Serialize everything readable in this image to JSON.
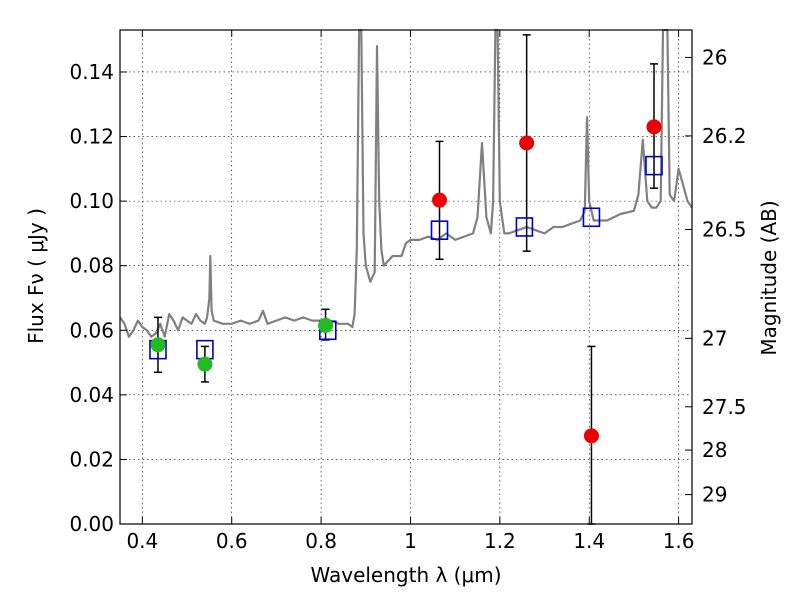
{
  "chart_data": {
    "type": "scatter",
    "xlabel": "Wavelength  λ (μm)",
    "ylabel": "Flux  Fν  ( μJy )",
    "ylabel_right": "Magnitude (AB)",
    "xlim": [
      0.35,
      1.63
    ],
    "ylim": [
      0.0,
      0.153
    ],
    "grid": true,
    "x_ticks": [
      0.4,
      0.6,
      0.8,
      1.0,
      1.2,
      1.4,
      1.6
    ],
    "x_tick_labels": [
      "0.4",
      "0.6",
      "0.8",
      "1",
      "1.2",
      "1.4",
      "1.6"
    ],
    "y_ticks": [
      0.0,
      0.02,
      0.04,
      0.06,
      0.08,
      0.1,
      0.12,
      0.14
    ],
    "y_tick_labels": [
      "0.00",
      "0.02",
      "0.04",
      "0.06",
      "0.08",
      "0.10",
      "0.12",
      "0.14"
    ],
    "right_ticks": [
      {
        "label": "26",
        "flux": 0.1445
      },
      {
        "label": "26.2",
        "flux": 0.1202
      },
      {
        "label": "26.5",
        "flux": 0.0912
      },
      {
        "label": "27",
        "flux": 0.0575
      },
      {
        "label": "27.5",
        "flux": 0.0363
      },
      {
        "label": "28",
        "flux": 0.0229
      },
      {
        "label": "29",
        "flux": 0.0091
      }
    ],
    "series": [
      {
        "role": "model spectrum",
        "color": "#808080",
        "points": [
          [
            0.35,
            0.064
          ],
          [
            0.36,
            0.062
          ],
          [
            0.37,
            0.058
          ],
          [
            0.38,
            0.06
          ],
          [
            0.39,
            0.063
          ],
          [
            0.4,
            0.061
          ],
          [
            0.41,
            0.06
          ],
          [
            0.42,
            0.058
          ],
          [
            0.43,
            0.059
          ],
          [
            0.44,
            0.062
          ],
          [
            0.45,
            0.058
          ],
          [
            0.46,
            0.065
          ],
          [
            0.47,
            0.063
          ],
          [
            0.48,
            0.06
          ],
          [
            0.49,
            0.064
          ],
          [
            0.5,
            0.063
          ],
          [
            0.51,
            0.062
          ],
          [
            0.52,
            0.065
          ],
          [
            0.53,
            0.063
          ],
          [
            0.54,
            0.062
          ],
          [
            0.545,
            0.064
          ],
          [
            0.55,
            0.07
          ],
          [
            0.552,
            0.083
          ],
          [
            0.555,
            0.066
          ],
          [
            0.56,
            0.063
          ],
          [
            0.58,
            0.062
          ],
          [
            0.6,
            0.062
          ],
          [
            0.62,
            0.063
          ],
          [
            0.64,
            0.062
          ],
          [
            0.66,
            0.063
          ],
          [
            0.67,
            0.066
          ],
          [
            0.68,
            0.062
          ],
          [
            0.7,
            0.063
          ],
          [
            0.72,
            0.064
          ],
          [
            0.74,
            0.063
          ],
          [
            0.76,
            0.064
          ],
          [
            0.78,
            0.063
          ],
          [
            0.8,
            0.063
          ],
          [
            0.82,
            0.063
          ],
          [
            0.84,
            0.062
          ],
          [
            0.86,
            0.062
          ],
          [
            0.87,
            0.061
          ],
          [
            0.875,
            0.065
          ],
          [
            0.88,
            0.085
          ],
          [
            0.885,
            0.153
          ],
          [
            0.89,
            0.153
          ],
          [
            0.895,
            0.09
          ],
          [
            0.9,
            0.08
          ],
          [
            0.91,
            0.075
          ],
          [
            0.92,
            0.078
          ],
          [
            0.925,
            0.148
          ],
          [
            0.93,
            0.1
          ],
          [
            0.935,
            0.085
          ],
          [
            0.94,
            0.08
          ],
          [
            0.96,
            0.083
          ],
          [
            0.98,
            0.083
          ],
          [
            0.99,
            0.087
          ],
          [
            1.0,
            0.088
          ],
          [
            1.02,
            0.088
          ],
          [
            1.04,
            0.089
          ],
          [
            1.06,
            0.088
          ],
          [
            1.08,
            0.09
          ],
          [
            1.1,
            0.088
          ],
          [
            1.12,
            0.089
          ],
          [
            1.14,
            0.09
          ],
          [
            1.15,
            0.095
          ],
          [
            1.16,
            0.118
          ],
          [
            1.17,
            0.095
          ],
          [
            1.18,
            0.09
          ],
          [
            1.185,
            0.1
          ],
          [
            1.19,
            0.153
          ],
          [
            1.195,
            0.153
          ],
          [
            1.2,
            0.1
          ],
          [
            1.21,
            0.09
          ],
          [
            1.22,
            0.09
          ],
          [
            1.24,
            0.091
          ],
          [
            1.26,
            0.092
          ],
          [
            1.28,
            0.091
          ],
          [
            1.3,
            0.09
          ],
          [
            1.32,
            0.092
          ],
          [
            1.34,
            0.092
          ],
          [
            1.36,
            0.093
          ],
          [
            1.38,
            0.094
          ],
          [
            1.39,
            0.097
          ],
          [
            1.395,
            0.126
          ],
          [
            1.4,
            0.1
          ],
          [
            1.41,
            0.094
          ],
          [
            1.44,
            0.094
          ],
          [
            1.47,
            0.096
          ],
          [
            1.5,
            0.097
          ],
          [
            1.51,
            0.102
          ],
          [
            1.52,
            0.119
          ],
          [
            1.53,
            0.1
          ],
          [
            1.54,
            0.098
          ],
          [
            1.55,
            0.098
          ],
          [
            1.56,
            0.1
          ],
          [
            1.565,
            0.153
          ],
          [
            1.575,
            0.153
          ],
          [
            1.58,
            0.102
          ],
          [
            1.59,
            0.1
          ],
          [
            1.6,
            0.11
          ],
          [
            1.61,
            0.105
          ],
          [
            1.62,
            0.1
          ],
          [
            1.63,
            0.098
          ]
        ]
      },
      {
        "role": "model fluxes",
        "color": "#0000cc",
        "marker": "open-square",
        "points": [
          [
            0.435,
            0.054
          ],
          [
            0.54,
            0.054
          ],
          [
            0.815,
            0.06
          ],
          [
            1.065,
            0.091
          ],
          [
            1.255,
            0.092
          ],
          [
            1.405,
            0.095
          ],
          [
            1.545,
            0.111
          ]
        ]
      },
      {
        "role": "measured fluxes (green)",
        "color": "#22bb22",
        "marker": "filled-circle",
        "points": [
          {
            "x": 0.435,
            "y": 0.0555,
            "lo": 0.047,
            "hi": 0.064
          },
          {
            "x": 0.54,
            "y": 0.0495,
            "lo": 0.044,
            "hi": 0.055
          },
          {
            "x": 0.81,
            "y": 0.0615,
            "lo": 0.057,
            "hi": 0.0665
          }
        ]
      },
      {
        "role": "measured fluxes (red)",
        "color": "#ee0000",
        "marker": "filled-circle",
        "points": [
          {
            "x": 1.065,
            "y": 0.1003,
            "lo": 0.082,
            "hi": 0.1185
          },
          {
            "x": 1.26,
            "y": 0.118,
            "lo": 0.0845,
            "hi": 0.1515
          },
          {
            "x": 1.405,
            "y": 0.0273,
            "lo": 0.0,
            "hi": 0.055
          },
          {
            "x": 1.545,
            "y": 0.123,
            "lo": 0.104,
            "hi": 0.1425
          }
        ]
      }
    ]
  }
}
